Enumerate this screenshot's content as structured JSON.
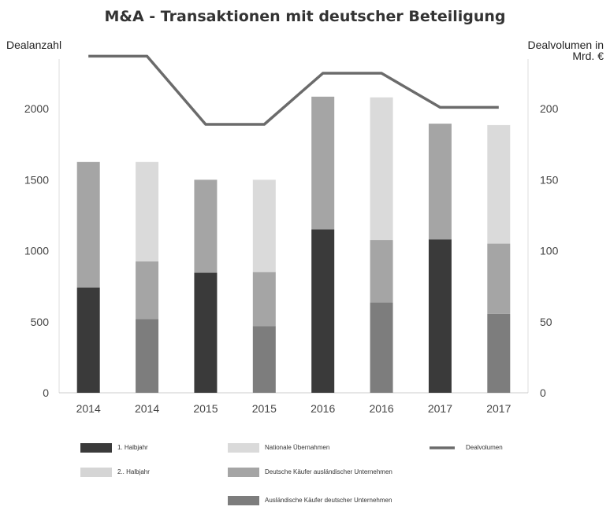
{
  "chart_data": {
    "type": "bar",
    "title": "M&A - Transaktionen mit deutscher Beteiligung",
    "ylabel": "Dealanzahl",
    "y2label": [
      "Dealvolumen in",
      "Mrd. €"
    ],
    "ylim": [
      0,
      2350
    ],
    "y2lim": [
      0,
      235
    ],
    "yticks": [
      0,
      500,
      1000,
      1500,
      2000
    ],
    "y2ticks": [
      0,
      50,
      100,
      150,
      200
    ],
    "grid": false,
    "legend_position": "bottom",
    "categories": [
      "2014",
      "2014",
      "2015",
      "2015",
      "2016",
      "2016",
      "2017",
      "2017"
    ],
    "series": [
      {
        "name": "1. Halbjahr",
        "color": "#3a3a3a",
        "values": [
          740,
          0,
          845,
          0,
          1150,
          0,
          1080,
          0
        ]
      },
      {
        "name": "2.. Halbjahr",
        "color": "#d5d5d5",
        "values": [
          0,
          0,
          0,
          0,
          0,
          0,
          0,
          0
        ]
      },
      {
        "name": "Nationale Übernahmen",
        "color": "#dadada",
        "values": [
          0,
          700,
          0,
          650,
          0,
          1005,
          0,
          835
        ]
      },
      {
        "name": "Deutsche Käufer ausländischer Unternehmen",
        "color": "#a5a5a5",
        "values": [
          885,
          405,
          655,
          380,
          935,
          440,
          815,
          495
        ]
      },
      {
        "name": "Ausländische Käufer deutscher Unternehmen",
        "color": "#7d7d7d",
        "values": [
          0,
          520,
          0,
          470,
          0,
          635,
          0,
          555
        ]
      }
    ],
    "line": {
      "name": "Dealvolumen",
      "color": "#6b6b6b",
      "values": [
        237,
        237,
        189,
        189,
        225,
        225,
        201,
        201
      ]
    }
  }
}
